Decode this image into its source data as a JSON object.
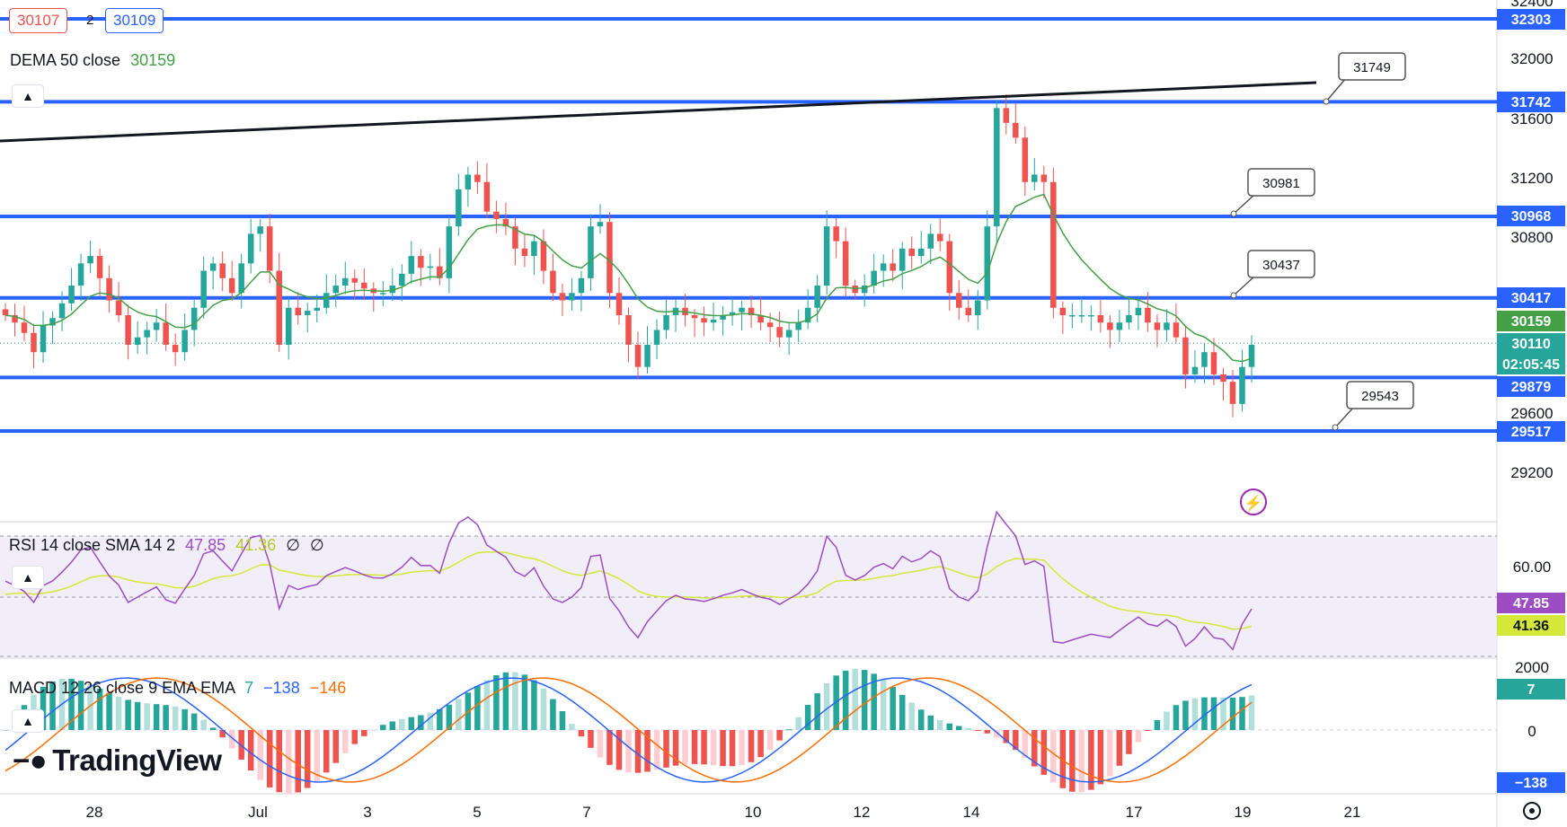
{
  "toolbar": {
    "bid": "30107",
    "spread": "2",
    "ask": "30109"
  },
  "branding": {
    "name": "TradingView"
  },
  "dema": {
    "label": "DEMA 50 close",
    "value": "30159"
  },
  "rsi_legend": {
    "label": "RSI 14 close SMA 14 2",
    "rsi": "47.85",
    "sma": "41.36",
    "f1": "∅",
    "f2": "∅"
  },
  "macd_legend": {
    "label": "MACD 12 26 close 9 EMA EMA",
    "hist": "7",
    "macd": "−138",
    "signal": "−146"
  },
  "price_axis_ticks": [
    "32400",
    "32000",
    "31600",
    "31200",
    "30800",
    "29600",
    "29200"
  ],
  "price_axis_badges": [
    {
      "text": "32303",
      "color": "#2962ff"
    },
    {
      "text": "31742",
      "color": "#2962ff"
    },
    {
      "text": "30968",
      "color": "#2962ff"
    },
    {
      "text": "30417",
      "color": "#2962ff"
    },
    {
      "text": "30159",
      "color": "#43a047"
    },
    {
      "text": "30110",
      "color": "#26a69a"
    },
    {
      "text": "02:05:45",
      "color": "#26a69a"
    },
    {
      "text": "29879",
      "color": "#2962ff"
    },
    {
      "text": "29517",
      "color": "#2962ff"
    }
  ],
  "callouts": [
    "31749",
    "30981",
    "30437",
    "29543"
  ],
  "rsi_axis": {
    "tick": "60.00",
    "rsi_badge": "47.85",
    "sma_badge": "41.36"
  },
  "macd_axis": {
    "top_tick": "2000",
    "zero_tick": "0",
    "hist_badge": "7",
    "low_badge": "−138"
  },
  "x_axis": [
    "28",
    "Jul",
    "3",
    "5",
    "7",
    "10",
    "12",
    "14",
    "17",
    "19",
    "21"
  ],
  "colors": {
    "up": "#26a69a",
    "down": "#ef5350",
    "level": "#2962ff",
    "dema": "#43a047",
    "rsi": "#9c4dc4",
    "rsi_sma": "#d4e83a",
    "macd": "#2962ff",
    "signal": "#ff6d00"
  },
  "chart_data": {
    "type": "candlestick",
    "symbol_interval": "4h",
    "x_categories": [
      "28",
      "Jul",
      "3",
      "5",
      "7",
      "10",
      "12",
      "14",
      "17",
      "19",
      "21"
    ],
    "horizontal_levels": [
      32303,
      31742,
      30968,
      30417,
      29879,
      29517
    ],
    "trendline": {
      "label": 31749
    },
    "last_price": 30110,
    "dema50": 30159,
    "price_range": [
      29100,
      32450
    ],
    "candles_close_approx": [
      30300,
      30250,
      30180,
      30050,
      30230,
      30280,
      30380,
      30500,
      30650,
      30700,
      30550,
      30400,
      30300,
      30100,
      30150,
      30200,
      30250,
      30100,
      30050,
      30200,
      30350,
      30600,
      30650,
      30550,
      30450,
      30650,
      30850,
      30900,
      30600,
      30100,
      30350,
      30300,
      30330,
      30350,
      30450,
      30500,
      30550,
      30520,
      30480,
      30450,
      30450,
      30500,
      30580,
      30700,
      30620,
      30630,
      30550,
      30900,
      31150,
      31250,
      31200,
      31000,
      30950,
      30900,
      30750,
      30700,
      30800,
      30600,
      30450,
      30400,
      30450,
      30550,
      30900,
      30930,
      30450,
      30300,
      30100,
      29950,
      30100,
      30200,
      30300,
      30350,
      30300,
      30280,
      30250,
      30270,
      30300,
      30320,
      30350,
      30300,
      30250,
      30220,
      30150,
      30200,
      30250,
      30350,
      30500,
      30900,
      30800,
      30500,
      30450,
      30500,
      30600,
      30650,
      30600,
      30750,
      30700,
      30750,
      30850,
      30800,
      30450,
      30350,
      30300,
      30400,
      30900,
      31700,
      31600,
      31500,
      31200,
      31250,
      31200,
      30350,
      30300,
      30300,
      30300,
      30300,
      30250,
      30200,
      30250,
      30300,
      30350,
      30250,
      30200,
      30250,
      30150,
      29900,
      29950,
      30050,
      29900,
      29850,
      29700,
      29950,
      30100
    ]
  },
  "rsi_data": {
    "range": [
      20,
      80
    ],
    "bands": [
      70,
      30
    ],
    "last_rsi": 47.85,
    "last_sma": 41.36
  },
  "macd_data": {
    "last_hist": 7,
    "last_macd": -138,
    "last_signal": -146
  }
}
